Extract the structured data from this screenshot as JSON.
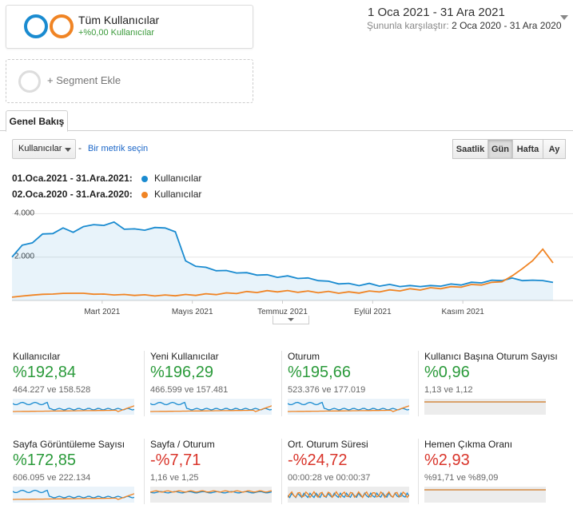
{
  "segment": {
    "title": "Tüm Kullanıcılar",
    "subtitle": "+%0,00 Kullanıcılar",
    "add_label": "+ Segment Ekle"
  },
  "date": {
    "range": "1 Oca 2021 - 31 Ara 2021",
    "compare_label": "Şununla karşılaştır:",
    "compare_range": "2 Oca 2020 - 31 Ara 2020"
  },
  "tabs": {
    "overview": "Genel Bakış"
  },
  "controls": {
    "metric_select": "Kullanıcılar",
    "dash": "-",
    "pick_metric": "Bir metrik seçin",
    "granularity": [
      "Saatlik",
      "Gün",
      "Hafta",
      "Ay"
    ],
    "active_granularity": "Gün"
  },
  "colors": {
    "primary": "#1a8bd0",
    "compare": "#f08424",
    "green": "#2a9a3a",
    "red": "#d9352b"
  },
  "legend": [
    {
      "period": "01.Oca.2021 - 31.Ara.2021:",
      "series": "Kullanıcılar",
      "color": "#1a8bd0"
    },
    {
      "period": "02.Oca.2020 - 31.Ara.2020:",
      "series": "Kullanıcılar",
      "color": "#f08424"
    }
  ],
  "chart_data": {
    "type": "line",
    "y_ticks": [
      "4.000",
      "2.000"
    ],
    "ylim": [
      0,
      4200
    ],
    "x_labels": [
      "Mart 2021",
      "Mayıs 2021",
      "Temmuz 2021",
      "Eylül 2021",
      "Kasım 2021"
    ],
    "x_label_months": [
      2,
      4,
      6,
      8,
      10
    ],
    "grid": true,
    "series": [
      {
        "name": "01.Oca.2021 - 31.Ara.2021: Kullanıcılar",
        "color": "#1a8bd0",
        "values": [
          2000,
          2500,
          2750,
          2950,
          3200,
          3250,
          3200,
          3400,
          3450,
          3550,
          3500,
          3400,
          3200,
          3300,
          3350,
          3300,
          3250,
          1800,
          1600,
          1500,
          1400,
          1350,
          1300,
          1250,
          1200,
          1150,
          1100,
          1100,
          1050,
          1000,
          950,
          850,
          800,
          750,
          720,
          750,
          700,
          700,
          680,
          650,
          680,
          650,
          700,
          720,
          750,
          800,
          850,
          900,
          950,
          1000,
          950,
          900,
          950,
          800
        ]
      },
      {
        "name": "02.Oca.2020 - 31.Ara.2020: Kullanıcılar",
        "color": "#f08424",
        "values": [
          150,
          200,
          250,
          280,
          300,
          320,
          340,
          320,
          300,
          280,
          270,
          260,
          250,
          240,
          230,
          230,
          240,
          250,
          260,
          280,
          300,
          320,
          350,
          380,
          400,
          420,
          430,
          420,
          410,
          400,
          390,
          380,
          370,
          360,
          380,
          400,
          430,
          450,
          480,
          500,
          520,
          550,
          580,
          600,
          650,
          700,
          750,
          800,
          900,
          1100,
          1500,
          1800,
          2400,
          1700
        ]
      }
    ]
  },
  "tiles": [
    {
      "title": "Kullanıcılar",
      "pct": "%192,84",
      "cmp": "464.227 ve 158.528",
      "trend": "up",
      "spark": "big"
    },
    {
      "title": "Yeni Kullanıcılar",
      "pct": "%196,29",
      "cmp": "466.599 ve 157.481",
      "trend": "up",
      "spark": "big"
    },
    {
      "title": "Oturum",
      "pct": "%195,66",
      "cmp": "523.376 ve 177.019",
      "trend": "up",
      "spark": "big"
    },
    {
      "title": "Kullanıcı Başına Oturum Sayısı",
      "pct": "%0,96",
      "cmp": "1,13 ve 1,12",
      "trend": "up",
      "spark": "flat"
    },
    {
      "title": "Sayfa Görüntüleme Sayısı",
      "pct": "%172,85",
      "cmp": "606.095 ve 222.134",
      "trend": "up",
      "spark": "big"
    },
    {
      "title": "Sayfa / Oturum",
      "pct": "-%7,71",
      "cmp": "1,16 ve 1,25",
      "trend": "down",
      "spark": "flat2"
    },
    {
      "title": "Ort. Oturum Süresi",
      "pct": "-%24,72",
      "cmp": "00:00:28 ve 00:00:37",
      "trend": "down",
      "spark": "noisy"
    },
    {
      "title": "Hemen Çıkma Oranı",
      "pct": "%2,93",
      "cmp": "%91,71 ve %89,09",
      "trend": "down",
      "spark": "flat"
    }
  ]
}
